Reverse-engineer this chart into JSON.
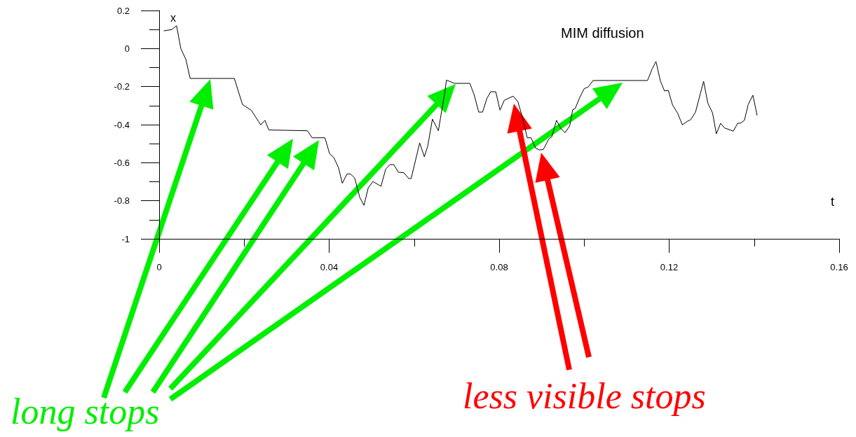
{
  "chart_data": {
    "type": "line",
    "title": "MIM diffusion",
    "xlabel": "t",
    "ylabel": "x",
    "xlim": [
      0,
      0.16
    ],
    "ylim": [
      -1,
      0.2
    ],
    "xticks": [
      0,
      {
        "value": 0.02,
        "label": null
      },
      0.04,
      {
        "value": 0.06,
        "label": null
      },
      0.08,
      {
        "value": 0.1,
        "label": null
      },
      0.12,
      {
        "value": 0.14,
        "label": null
      },
      0.16
    ],
    "yticks": [
      0.2,
      {
        "value": 0.1,
        "label": null
      },
      0,
      {
        "value": -0.1,
        "label": null
      },
      -0.2,
      {
        "value": -0.3,
        "label": null
      },
      -0.4,
      {
        "value": -0.5,
        "label": null
      },
      -0.6,
      {
        "value": -0.7,
        "label": null
      },
      -0.8,
      {
        "value": -0.9,
        "label": null
      },
      -1
    ],
    "annotations": [
      "long stops",
      "less visible stops"
    ],
    "series": [
      {
        "color": "#000000",
        "x": [
          0.0011,
          0.003,
          0.0041,
          0.0051,
          0.0063,
          0.0073,
          0.0177,
          0.0196,
          0.0217,
          0.0239,
          0.0249,
          0.0258,
          0.0349,
          0.036,
          0.039,
          0.0401,
          0.0411,
          0.0422,
          0.0431,
          0.0442,
          0.045,
          0.046,
          0.0472,
          0.0482,
          0.0492,
          0.0503,
          0.0522,
          0.0533,
          0.0543,
          0.0552,
          0.0563,
          0.0576,
          0.0587,
          0.0593,
          0.0613,
          0.0624,
          0.0632,
          0.0643,
          0.0657,
          0.0662,
          0.0672,
          0.0676,
          0.0695,
          0.0731,
          0.0741,
          0.0752,
          0.0761,
          0.0771,
          0.078,
          0.0792,
          0.0802,
          0.0812,
          0.0833,
          0.0844,
          0.0856,
          0.0866,
          0.0875,
          0.0886,
          0.0895,
          0.0904,
          0.0917,
          0.0924,
          0.0935,
          0.0945,
          0.0955,
          0.0966,
          0.0973,
          0.0979,
          0.0989,
          0.1,
          0.101,
          0.1021,
          0.1149,
          0.116,
          0.1169,
          0.1179,
          0.1189,
          0.1198,
          0.1208,
          0.122,
          0.1231,
          0.1241,
          0.1251,
          0.1262,
          0.1281,
          0.1291,
          0.1302,
          0.1311,
          0.1321,
          0.133,
          0.1351,
          0.1361,
          0.1368,
          0.1377,
          0.1386,
          0.1397,
          0.1407
        ],
        "values": [
          0.093,
          0.1,
          0.12,
          0.0,
          -0.058,
          -0.157,
          -0.157,
          -0.294,
          -0.325,
          -0.401,
          -0.377,
          -0.428,
          -0.432,
          -0.469,
          -0.469,
          -0.552,
          -0.573,
          -0.626,
          -0.708,
          -0.659,
          -0.659,
          -0.68,
          -0.782,
          -0.824,
          -0.732,
          -0.699,
          -0.724,
          -0.634,
          -0.61,
          -0.61,
          -0.65,
          -0.653,
          -0.683,
          -0.683,
          -0.496,
          -0.569,
          -0.512,
          -0.371,
          -0.432,
          -0.365,
          -0.233,
          -0.166,
          -0.183,
          -0.183,
          -0.242,
          -0.334,
          -0.334,
          -0.263,
          -0.227,
          -0.227,
          -0.324,
          -0.272,
          -0.25,
          -0.279,
          -0.371,
          -0.469,
          -0.469,
          -0.524,
          -0.533,
          -0.53,
          -0.475,
          -0.463,
          -0.377,
          -0.42,
          -0.442,
          -0.407,
          -0.322,
          -0.315,
          -0.26,
          -0.211,
          -0.201,
          -0.168,
          -0.168,
          -0.107,
          -0.068,
          -0.168,
          -0.223,
          -0.22,
          -0.297,
          -0.34,
          -0.401,
          -0.385,
          -0.373,
          -0.334,
          -0.172,
          -0.287,
          -0.338,
          -0.448,
          -0.393,
          -0.417,
          -0.434,
          -0.393,
          -0.392,
          -0.377,
          -0.294,
          -0.245,
          -0.352
        ]
      }
    ]
  }
}
